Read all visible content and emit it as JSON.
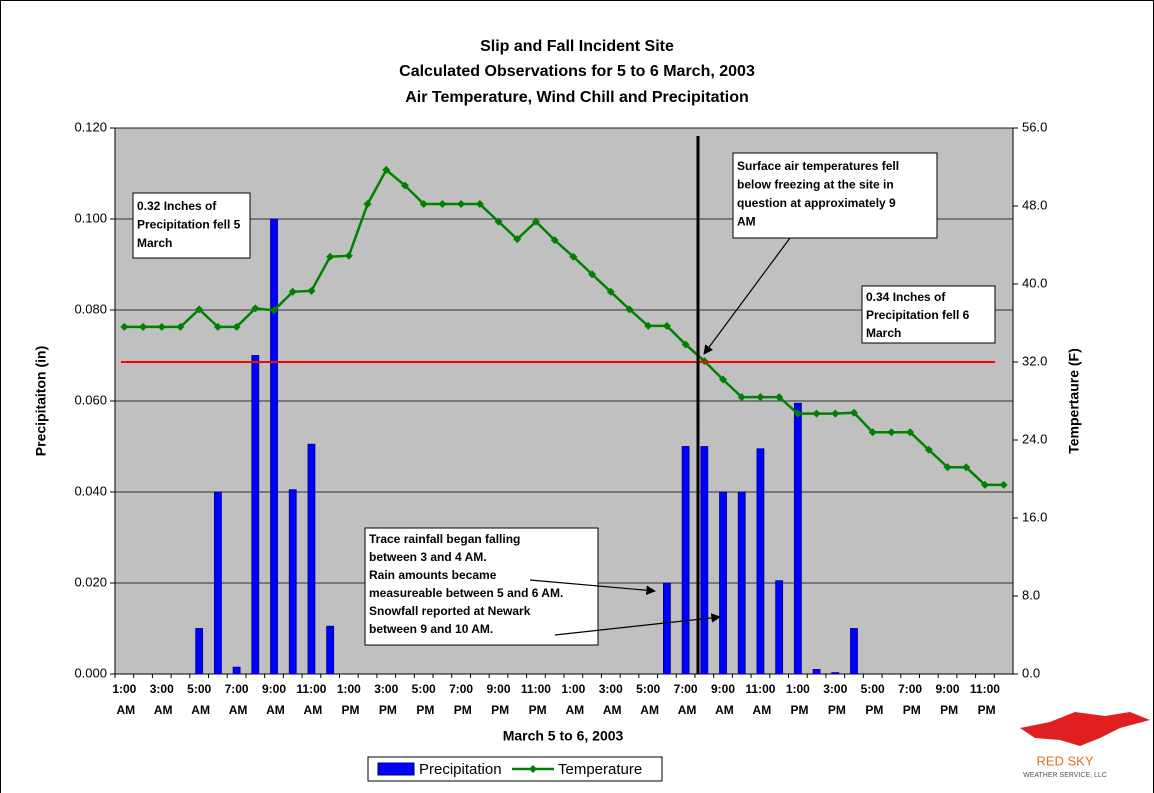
{
  "chart_data": {
    "type": "bar_line",
    "title": [
      "Slip and Fall Incident Site",
      "Calculated Observations for 5 to 6 March, 2003",
      "Air Temperature, Wind Chill and Precipitation"
    ],
    "x_label": "March 5 to 6, 2003",
    "y_label": "Precipitaiton (in)",
    "y2_label": "Tempertaure (F)",
    "categories": [
      "1:00 AM",
      null,
      "3:00 AM",
      null,
      "5:00 AM",
      null,
      "7:00 AM",
      null,
      "9:00 AM",
      null,
      "11:00 AM",
      null,
      "1:00 PM",
      null,
      "3:00 PM",
      null,
      "5:00 PM",
      null,
      "7:00 PM",
      null,
      "9:00 PM",
      null,
      "11:00 PM",
      null,
      "1:00 AM",
      null,
      "3:00 AM",
      null,
      "5:00 AM",
      null,
      "7:00 AM",
      null,
      "9:00 AM",
      null,
      "11:00 AM",
      null,
      "1:00 PM",
      null,
      "3:00 PM",
      null,
      "5:00 PM",
      null,
      "7:00 PM",
      null,
      "9:00 PM",
      null,
      "11:00 PM",
      null
    ],
    "series": [
      {
        "name": "Precipitation",
        "type": "bar",
        "color": "#0000ff",
        "axis": "y",
        "values": [
          0,
          0,
          0,
          0,
          0.01,
          0.04,
          0.0015,
          0.07,
          0.1,
          0.0405,
          0.0505,
          0.0105,
          0,
          0,
          0,
          0,
          0,
          0,
          0,
          0,
          0,
          0,
          0,
          0,
          0,
          0,
          0,
          0,
          0,
          0.02,
          0.05,
          0.05,
          0.04,
          0.04,
          0.0495,
          0.0205,
          0.0595,
          0.001,
          0.0003,
          0.01,
          0,
          0,
          0,
          0,
          0,
          0,
          0,
          0
        ]
      },
      {
        "name": "Temperature",
        "type": "line",
        "color": "#008000",
        "axis": "y2",
        "values": [
          35.6,
          35.6,
          35.6,
          35.6,
          37.4,
          35.6,
          35.6,
          37.5,
          37.3,
          39.2,
          39.3,
          42.8,
          42.9,
          48.2,
          51.7,
          50.1,
          48.2,
          48.2,
          48.2,
          48.2,
          46.4,
          44.6,
          46.4,
          44.5,
          42.8,
          41.0,
          39.2,
          37.4,
          35.7,
          35.7,
          33.8,
          32.1,
          30.2,
          28.4,
          28.4,
          28.4,
          26.7,
          26.7,
          26.7,
          26.8,
          24.8,
          24.8,
          24.8,
          23.0,
          21.2,
          21.2,
          19.4,
          19.4
        ]
      }
    ],
    "ylim": [
      0,
      0.12
    ],
    "yticks": [
      {
        "value": 0,
        "label": "0.000"
      },
      {
        "value": 0.02,
        "label": "0.020"
      },
      {
        "value": 0.04,
        "label": "0.040"
      },
      {
        "value": 0.06,
        "label": "0.060"
      },
      {
        "value": 0.08,
        "label": "0.080"
      },
      {
        "value": 0.1,
        "label": "0.100"
      },
      {
        "value": 0.12,
        "label": "0.120"
      }
    ],
    "y2lim": [
      0,
      56
    ],
    "y2ticks": [
      {
        "value": 0,
        "label": "0.0"
      },
      {
        "value": 8,
        "label": "8.0"
      },
      {
        "value": 16,
        "label": "16.0"
      },
      {
        "value": 24,
        "label": "24.0"
      },
      {
        "value": 32,
        "label": "32.0"
      },
      {
        "value": 40,
        "label": "40.0"
      },
      {
        "value": 48,
        "label": "48.0"
      },
      {
        "value": 56,
        "label": "56.0"
      }
    ],
    "reference_line": {
      "value": 32,
      "axis": "y2",
      "color": "#ff0000"
    },
    "grid": true,
    "legend": "bottom",
    "annotations": [
      {
        "lines": [
          "0.32 Inches of",
          "Precipitation fell 5",
          "March"
        ]
      },
      {
        "lines": [
          "Surface air temperatures fell",
          "below freezing at the site in",
          "question at approximately 9",
          "AM"
        ]
      },
      {
        "lines": [
          "0.34 Inches of",
          "Precipitation fell 6",
          "March"
        ]
      },
      {
        "lines": [
          "Trace rainfall began falling",
          "between 3 and 4 AM.",
          "Rain amounts became",
          "measureable between 5 and 6 AM.",
          "Snowfall reported at Newark",
          "between  9 and 10 AM."
        ]
      }
    ],
    "logo": [
      "RED SKY",
      "WEATHER SERVICE, LLC"
    ]
  }
}
